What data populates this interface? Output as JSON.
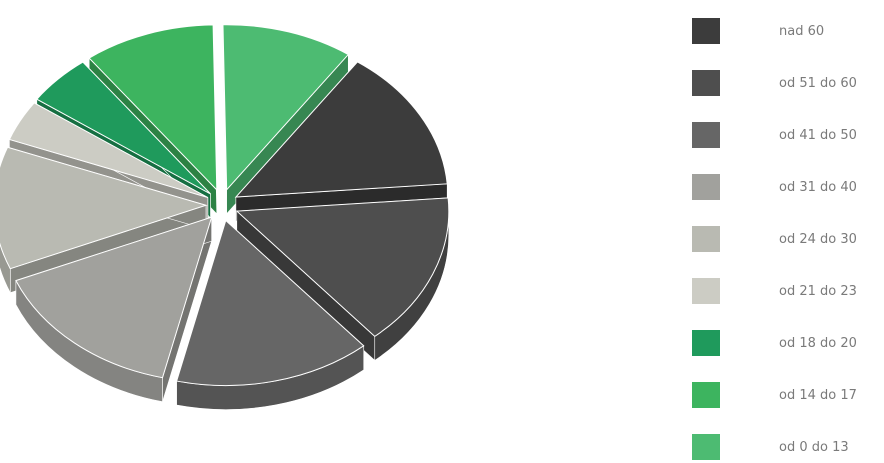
{
  "caption": "",
  "chart_data": {
    "type": "pie",
    "style": "3d-exploded",
    "title": "",
    "legend_position": "right",
    "slices": [
      {
        "label": "nad 60",
        "value": 14,
        "color": "#3c3c3c"
      },
      {
        "label": "od 51 do 60",
        "value": 15,
        "color": "#4e4e4e"
      },
      {
        "label": "od 41 do 50",
        "value": 15,
        "color": "#666666"
      },
      {
        "label": "od 31 do 40",
        "value": 15,
        "color": "#a1a19d"
      },
      {
        "label": "od 24 do 30",
        "value": 12,
        "color": "#b9bab2"
      },
      {
        "label": "od 21 do 23",
        "value": 4,
        "color": "#ccccc4"
      },
      {
        "label": "od 18 do 20",
        "value": 5,
        "color": "#1f9a5c"
      },
      {
        "label": "od 14 do 17",
        "value": 10,
        "color": "#3db45f"
      },
      {
        "label": "od 0 do 13",
        "value": 10,
        "color": "#4dbb72"
      }
    ]
  }
}
